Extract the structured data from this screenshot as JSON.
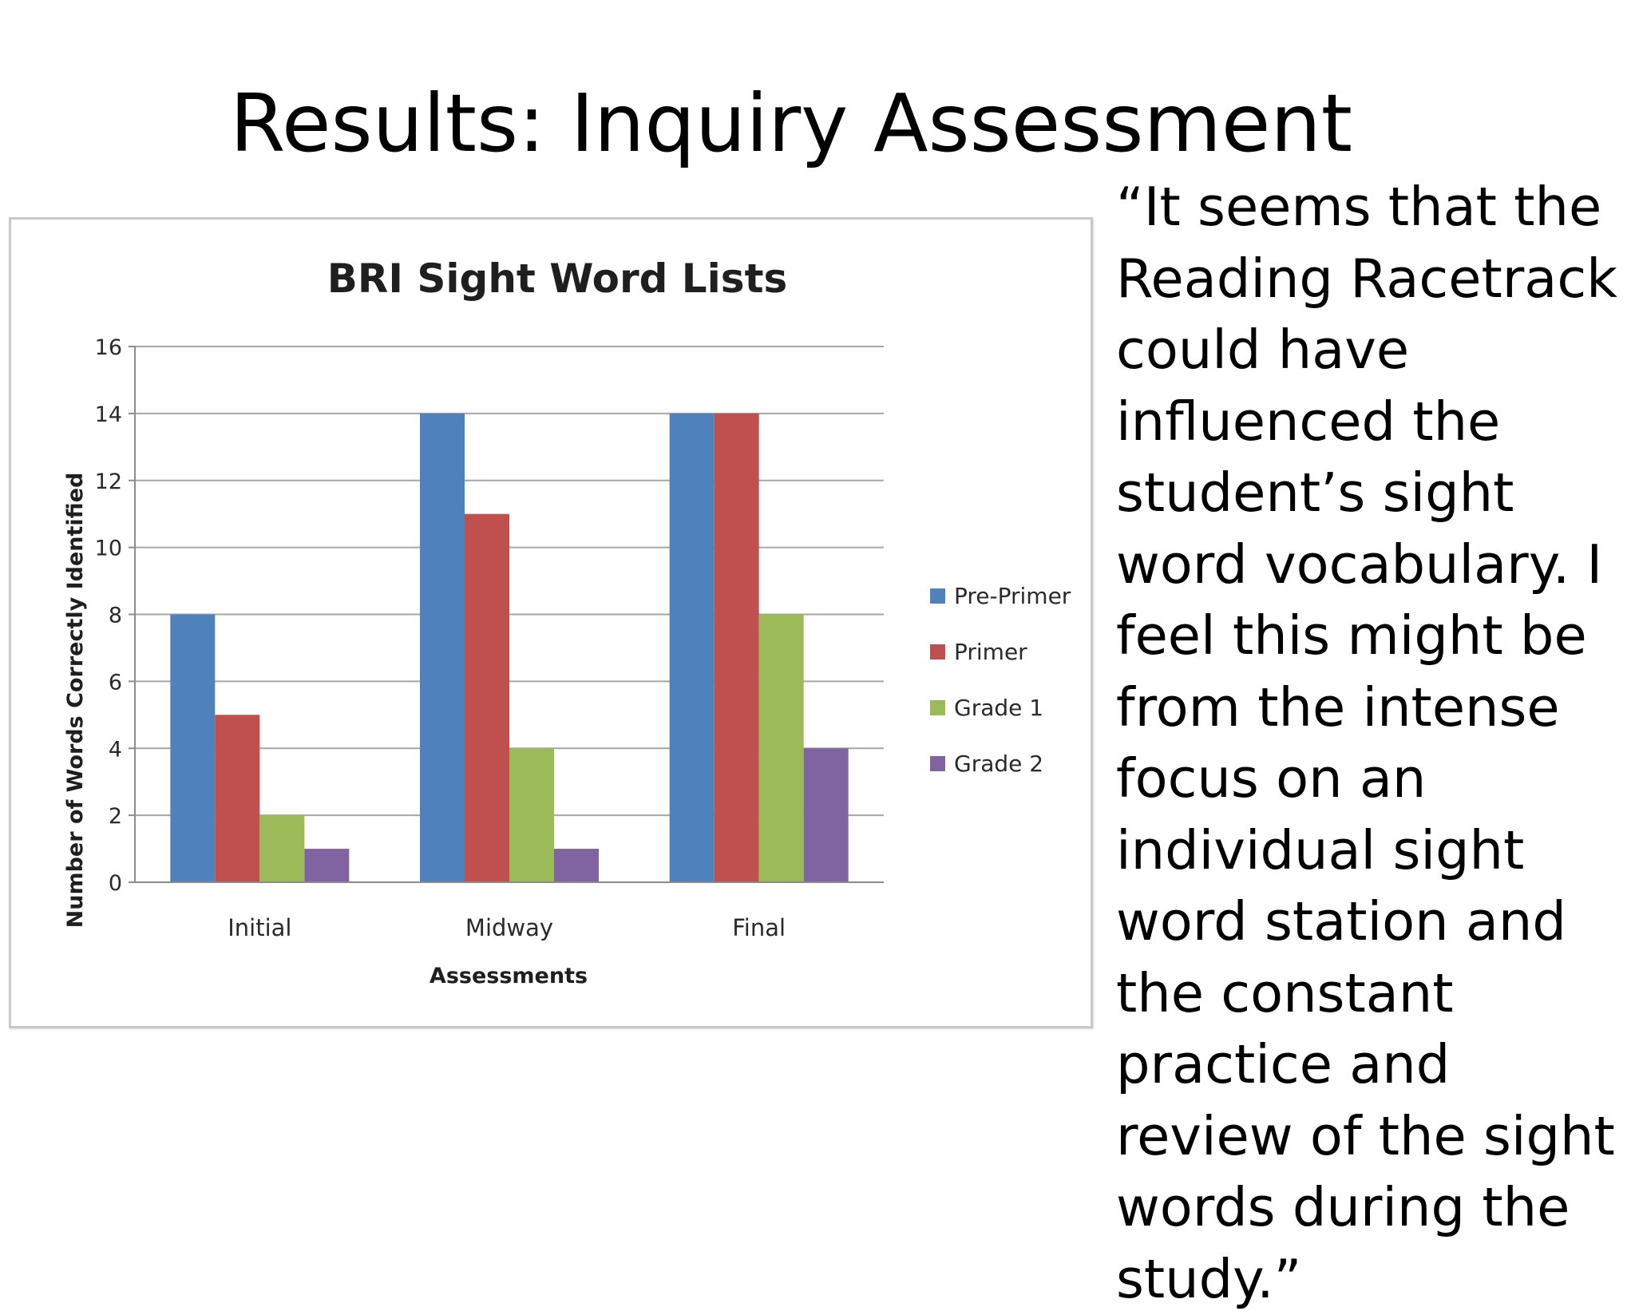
{
  "slide": {
    "title": "Results: Inquiry Assessment",
    "quote": "“It seems that the Reading Racetrack could have influenced the student’s sight word vocabulary.  I feel this might be from the intense focus on an individual sight word station and the constant practice and review of the sight words during the study.”"
  },
  "chart_data": {
    "type": "bar",
    "title": "BRI Sight Word Lists",
    "xlabel": "Assessments",
    "ylabel": "Number of Words Correctly Identified",
    "categories": [
      "Initial",
      "Midway",
      "Final"
    ],
    "series": [
      {
        "name": "Pre-Primer",
        "values": [
          8,
          14,
          14
        ],
        "color": "#4f81bd"
      },
      {
        "name": "Primer",
        "values": [
          5,
          11,
          14
        ],
        "color": "#c0504d"
      },
      {
        "name": "Grade 1",
        "values": [
          2,
          4,
          8
        ],
        "color": "#9bbb59"
      },
      {
        "name": "Grade 2",
        "values": [
          1,
          1,
          4
        ],
        "color": "#8064a2"
      }
    ],
    "ylim": [
      0,
      16
    ],
    "yticks": [
      0,
      2,
      4,
      6,
      8,
      10,
      12,
      14,
      16
    ],
    "grid": true,
    "legend_position": "right"
  }
}
